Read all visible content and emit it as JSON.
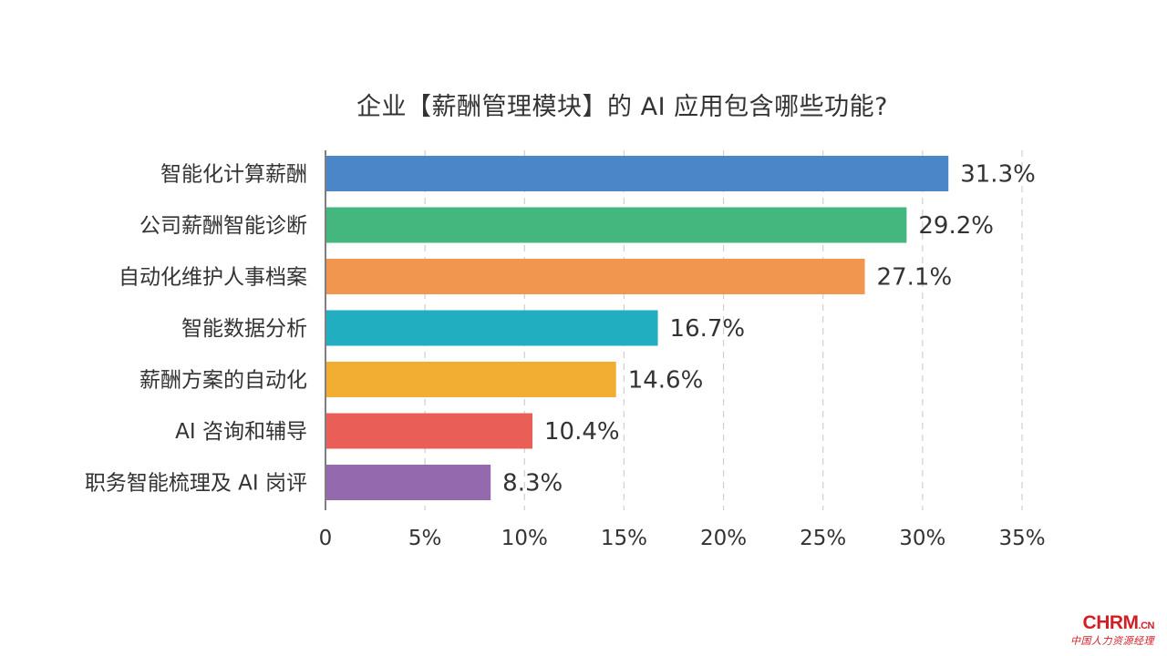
{
  "chart_data": {
    "type": "bar",
    "orientation": "horizontal",
    "title": "企业【薪酬管理模块】的 AI 应用包含哪些功能?",
    "categories": [
      "智能化计算薪酬",
      "公司薪酬智能诊断",
      "自动化维护人事档案",
      "智能数据分析",
      "薪酬方案的自动化",
      "AI 咨询和辅导",
      "职务智能梳理及 AI 岗评"
    ],
    "values": [
      31.3,
      29.2,
      27.1,
      16.7,
      14.6,
      10.4,
      8.3
    ],
    "value_labels": [
      "31.3%",
      "29.2%",
      "27.1%",
      "16.7%",
      "14.6%",
      "10.4%",
      "8.3%"
    ],
    "colors": [
      "#4a86c8",
      "#43b77e",
      "#f0964f",
      "#21aec0",
      "#f2ae33",
      "#e95f57",
      "#9569ae"
    ],
    "xlim": [
      0,
      35
    ],
    "xticks": [
      0,
      5,
      10,
      15,
      20,
      25,
      30,
      35
    ],
    "xtick_labels": [
      "0",
      "5%",
      "10%",
      "15%",
      "20%",
      "25%",
      "30%",
      "35%"
    ],
    "grid": "vertical dashed",
    "legend": "none"
  },
  "logo": {
    "main": "CHRM",
    "suffix": ".CN",
    "sub": "中国人力资源经理"
  }
}
